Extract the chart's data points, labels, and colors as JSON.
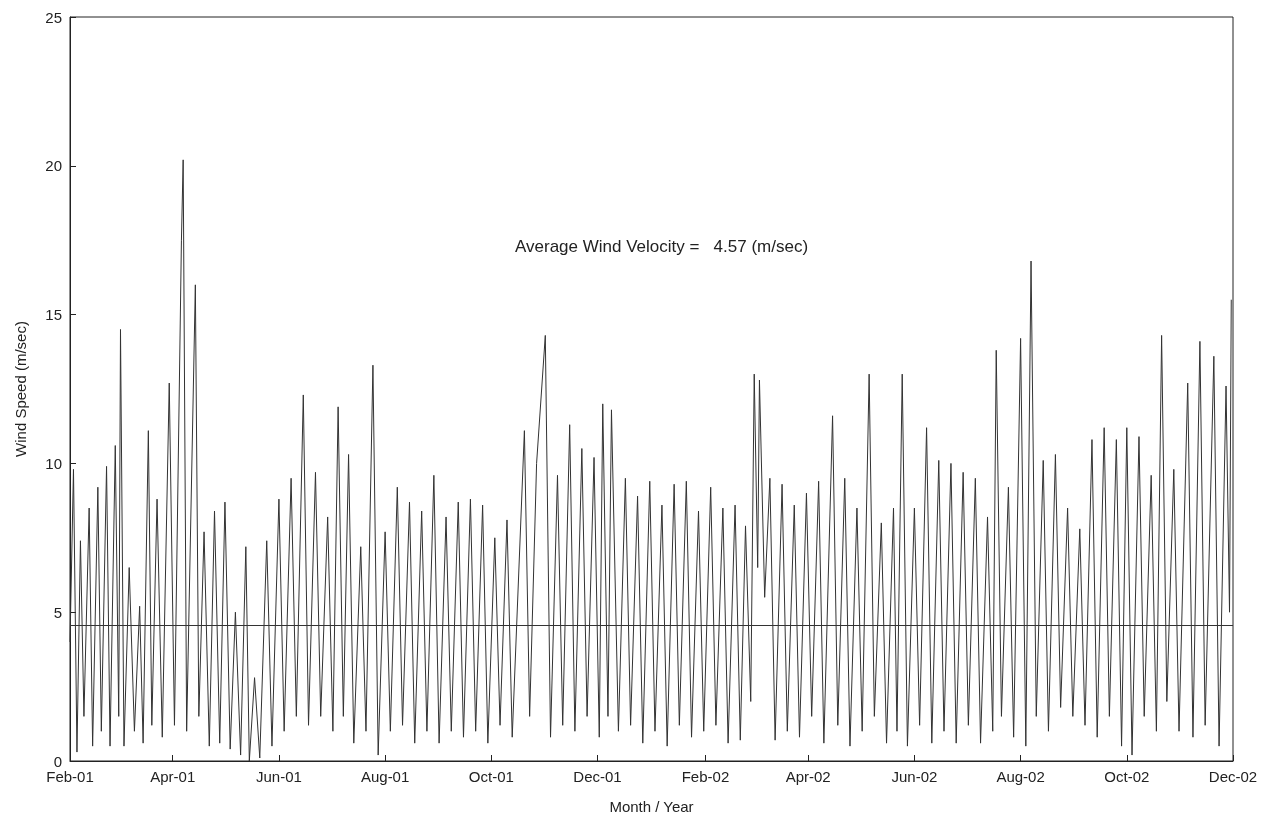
{
  "chart_data": {
    "type": "line",
    "xlabel": "Month / Year",
    "ylabel": "Wind Speed (m/sec)",
    "marker": "none",
    "grid": false,
    "annotations": [
      "Average Wind Velocity =   4.57 (m/sec)"
    ],
    "ref_lines": [
      {
        "axis": "y",
        "value": 4.57,
        "color": "#333333"
      }
    ],
    "xlim": [
      "2001-02-01",
      "2002-12-01"
    ],
    "xticks": [
      {
        "value": "2001-02-01",
        "label": "Feb-01"
      },
      {
        "value": "2001-04-01",
        "label": "Apr-01"
      },
      {
        "value": "2001-06-01",
        "label": "Jun-01"
      },
      {
        "value": "2001-08-01",
        "label": "Aug-01"
      },
      {
        "value": "2001-10-01",
        "label": "Oct-01"
      },
      {
        "value": "2001-12-01",
        "label": "Dec-01"
      },
      {
        "value": "2002-02-01",
        "label": "Feb-02"
      },
      {
        "value": "2002-04-01",
        "label": "Apr-02"
      },
      {
        "value": "2002-06-01",
        "label": "Jun-02"
      },
      {
        "value": "2002-08-01",
        "label": "Aug-02"
      },
      {
        "value": "2002-10-01",
        "label": "Oct-02"
      },
      {
        "value": "2002-12-01",
        "label": "Dec-02"
      }
    ],
    "ylim": [
      0,
      25
    ],
    "yticks": [
      0,
      5,
      10,
      15,
      20,
      25
    ],
    "x": [
      "2001-02-01",
      "2001-02-03",
      "2001-02-05",
      "2001-02-07",
      "2001-02-09",
      "2001-02-12",
      "2001-02-14",
      "2001-02-17",
      "2001-02-19",
      "2001-02-22",
      "2001-02-24",
      "2001-02-27",
      "2001-03-01",
      "2001-03-02",
      "2001-03-04",
      "2001-03-07",
      "2001-03-10",
      "2001-03-13",
      "2001-03-15",
      "2001-03-18",
      "2001-03-20",
      "2001-03-23",
      "2001-03-26",
      "2001-03-30",
      "2001-04-02",
      "2001-04-06",
      "2001-04-07",
      "2001-04-09",
      "2001-04-14",
      "2001-04-16",
      "2001-04-19",
      "2001-04-22",
      "2001-04-25",
      "2001-04-28",
      "2001-05-01",
      "2001-05-04",
      "2001-05-07",
      "2001-05-10",
      "2001-05-13",
      "2001-05-15",
      "2001-05-18",
      "2001-05-21",
      "2001-05-25",
      "2001-05-28",
      "2001-06-01",
      "2001-06-04",
      "2001-06-08",
      "2001-06-11",
      "2001-06-15",
      "2001-06-18",
      "2001-06-22",
      "2001-06-25",
      "2001-06-29",
      "2001-07-02",
      "2001-07-05",
      "2001-07-08",
      "2001-07-11",
      "2001-07-14",
      "2001-07-18",
      "2001-07-21",
      "2001-07-25",
      "2001-07-28",
      "2001-08-01",
      "2001-08-04",
      "2001-08-08",
      "2001-08-11",
      "2001-08-15",
      "2001-08-18",
      "2001-08-22",
      "2001-08-25",
      "2001-08-29",
      "2001-09-01",
      "2001-09-05",
      "2001-09-08",
      "2001-09-12",
      "2001-09-15",
      "2001-09-19",
      "2001-09-22",
      "2001-09-26",
      "2001-09-29",
      "2001-10-03",
      "2001-10-06",
      "2001-10-10",
      "2001-10-13",
      "2001-10-20",
      "2001-10-23",
      "2001-10-27",
      "2001-11-01",
      "2001-11-04",
      "2001-11-08",
      "2001-11-11",
      "2001-11-15",
      "2001-11-18",
      "2001-11-22",
      "2001-11-25",
      "2001-11-29",
      "2001-12-02",
      "2001-12-04",
      "2001-12-07",
      "2001-12-09",
      "2001-12-13",
      "2001-12-17",
      "2001-12-20",
      "2001-12-24",
      "2001-12-27",
      "2001-12-31",
      "2002-01-03",
      "2002-01-07",
      "2002-01-10",
      "2002-01-14",
      "2002-01-17",
      "2002-01-21",
      "2002-01-24",
      "2002-01-28",
      "2002-01-31",
      "2002-02-04",
      "2002-02-07",
      "2002-02-11",
      "2002-02-14",
      "2002-02-18",
      "2002-02-21",
      "2002-02-24",
      "2002-02-27",
      "2002-03-01",
      "2002-03-03",
      "2002-03-04",
      "2002-03-07",
      "2002-03-10",
      "2002-03-13",
      "2002-03-17",
      "2002-03-20",
      "2002-03-24",
      "2002-03-27",
      "2002-03-31",
      "2002-04-03",
      "2002-04-07",
      "2002-04-10",
      "2002-04-15",
      "2002-04-18",
      "2002-04-22",
      "2002-04-25",
      "2002-04-29",
      "2002-05-02",
      "2002-05-06",
      "2002-05-09",
      "2002-05-13",
      "2002-05-16",
      "2002-05-20",
      "2002-05-22",
      "2002-05-25",
      "2002-05-28",
      "2002-06-01",
      "2002-06-04",
      "2002-06-08",
      "2002-06-11",
      "2002-06-15",
      "2002-06-18",
      "2002-06-22",
      "2002-06-25",
      "2002-06-29",
      "2002-07-02",
      "2002-07-06",
      "2002-07-09",
      "2002-07-13",
      "2002-07-16",
      "2002-07-18",
      "2002-07-21",
      "2002-07-25",
      "2002-07-28",
      "2002-08-01",
      "2002-08-04",
      "2002-08-07",
      "2002-08-10",
      "2002-08-14",
      "2002-08-17",
      "2002-08-21",
      "2002-08-24",
      "2002-08-28",
      "2002-08-31",
      "2002-09-04",
      "2002-09-07",
      "2002-09-11",
      "2002-09-14",
      "2002-09-18",
      "2002-09-21",
      "2002-09-25",
      "2002-09-28",
      "2002-10-01",
      "2002-10-04",
      "2002-10-08",
      "2002-10-11",
      "2002-10-15",
      "2002-10-18",
      "2002-10-21",
      "2002-10-24",
      "2002-10-28",
      "2002-10-31",
      "2002-11-05",
      "2002-11-08",
      "2002-11-12",
      "2002-11-15",
      "2002-11-20",
      "2002-11-23",
      "2002-11-27",
      "2002-11-29",
      "2002-11-30"
    ],
    "series": [
      {
        "color": "#333333",
        "values": [
          4.0,
          9.8,
          0.3,
          7.4,
          1.5,
          8.5,
          0.5,
          9.2,
          1.0,
          9.9,
          0.5,
          10.6,
          1.5,
          14.5,
          0.5,
          6.5,
          1.0,
          5.2,
          0.6,
          11.1,
          1.2,
          8.8,
          0.8,
          12.7,
          1.2,
          17.5,
          20.2,
          1.0,
          16.0,
          1.5,
          7.7,
          0.5,
          8.4,
          0.6,
          8.7,
          0.4,
          5.0,
          0.2,
          7.2,
          0.0,
          2.8,
          0.1,
          7.4,
          0.5,
          8.8,
          1.0,
          9.5,
          1.5,
          12.3,
          1.2,
          9.7,
          1.5,
          8.2,
          1.0,
          11.9,
          1.5,
          10.3,
          0.6,
          7.2,
          1.0,
          13.3,
          0.2,
          7.7,
          1.0,
          9.2,
          1.2,
          8.7,
          0.6,
          8.4,
          1.0,
          9.6,
          0.6,
          8.2,
          1.0,
          8.7,
          0.8,
          8.8,
          1.0,
          8.6,
          0.6,
          7.5,
          1.2,
          8.1,
          0.8,
          11.1,
          1.5,
          10.0,
          14.3,
          0.8,
          9.6,
          1.2,
          11.3,
          1.0,
          10.5,
          1.5,
          10.2,
          0.8,
          12.0,
          1.5,
          11.8,
          1.0,
          9.5,
          1.2,
          8.9,
          0.6,
          9.4,
          1.0,
          8.6,
          0.5,
          9.3,
          1.2,
          9.4,
          0.8,
          8.4,
          1.0,
          9.2,
          1.2,
          8.5,
          0.6,
          8.6,
          0.7,
          7.9,
          2.0,
          13.0,
          6.5,
          12.8,
          5.5,
          9.5,
          0.7,
          9.3,
          1.0,
          8.6,
          0.8,
          9.0,
          1.5,
          9.4,
          0.6,
          11.6,
          1.2,
          9.5,
          0.5,
          8.5,
          1.0,
          13.0,
          1.5,
          8.0,
          0.6,
          8.5,
          1.0,
          13.0,
          0.5,
          8.5,
          1.2,
          11.2,
          0.6,
          10.1,
          1.0,
          10.0,
          0.6,
          9.7,
          1.2,
          9.5,
          0.6,
          8.2,
          1.0,
          13.8,
          1.5,
          9.2,
          0.8,
          14.2,
          0.5,
          16.8,
          1.5,
          10.1,
          1.0,
          10.3,
          1.8,
          8.5,
          1.5,
          7.8,
          1.2,
          10.8,
          0.8,
          11.2,
          1.5,
          10.8,
          0.5,
          11.2,
          0.2,
          10.9,
          1.5,
          9.6,
          1.0,
          14.3,
          2.0,
          9.8,
          1.0,
          12.7,
          0.8,
          14.1,
          1.2,
          13.6,
          0.5,
          12.6,
          5.0,
          15.5
        ]
      }
    ]
  }
}
